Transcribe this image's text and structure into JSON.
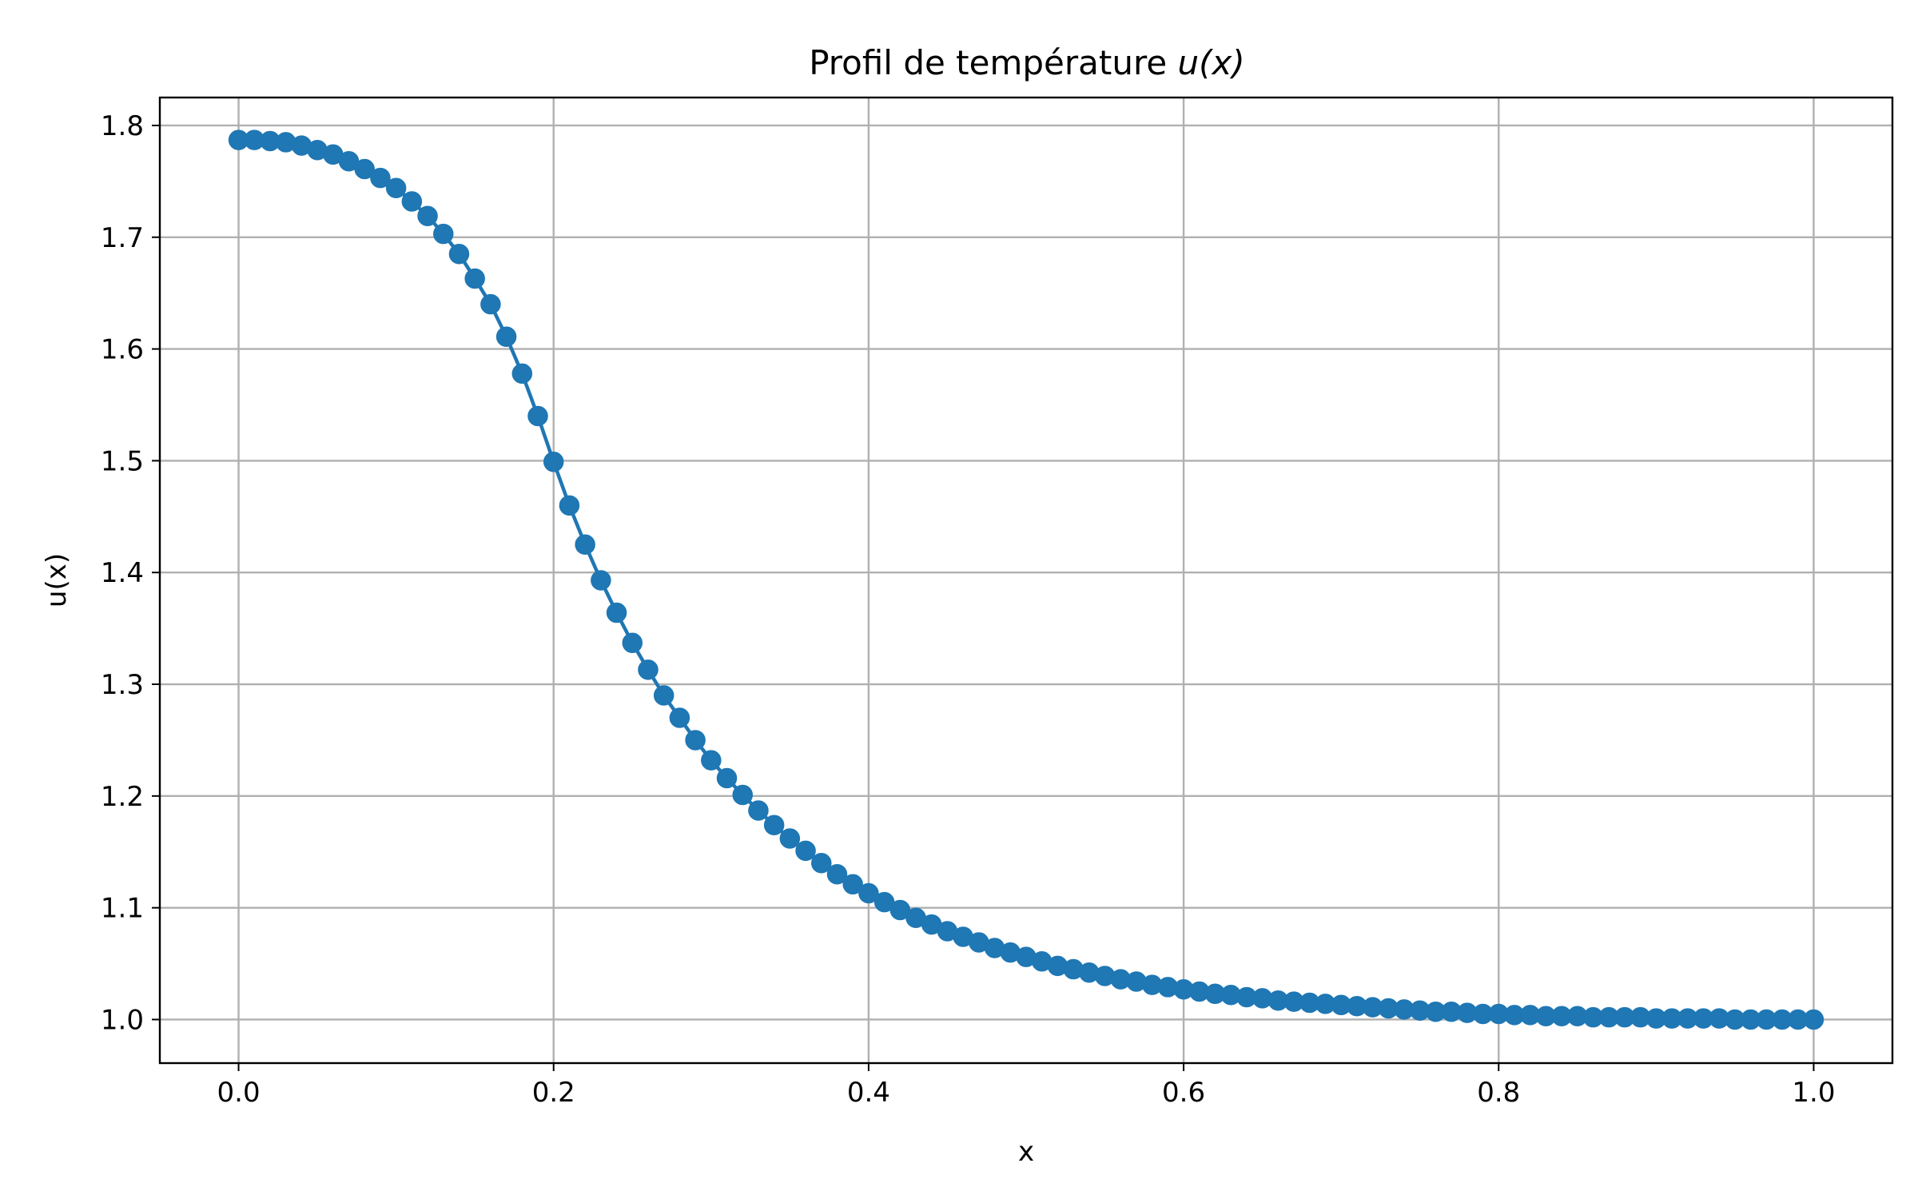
{
  "chart_data": {
    "type": "line",
    "title_prefix": "Profil de température ",
    "title_math": "u(x)",
    "xlabel": "x",
    "ylabel": "u(x)",
    "xlim": [
      -0.05,
      1.05
    ],
    "ylim": [
      0.961,
      1.825
    ],
    "xticks": [
      0.0,
      0.2,
      0.4,
      0.6,
      0.8,
      1.0
    ],
    "xtick_labels": [
      "0.0",
      "0.2",
      "0.4",
      "0.6",
      "0.8",
      "1.0"
    ],
    "yticks": [
      1.0,
      1.1,
      1.2,
      1.3,
      1.4,
      1.5,
      1.6,
      1.7,
      1.8
    ],
    "ytick_labels": [
      "1.0",
      "1.1",
      "1.2",
      "1.3",
      "1.4",
      "1.5",
      "1.6",
      "1.7",
      "1.8"
    ],
    "grid": true,
    "series": [
      {
        "color": "#1f77b4",
        "marker": "circle",
        "x": [
          0.0,
          0.01,
          0.02,
          0.03,
          0.04,
          0.05,
          0.06,
          0.07,
          0.08,
          0.09,
          0.1,
          0.11,
          0.12,
          0.13,
          0.14,
          0.15,
          0.16,
          0.17,
          0.18,
          0.19,
          0.2,
          0.21,
          0.22,
          0.23,
          0.24,
          0.25,
          0.26,
          0.27,
          0.28,
          0.29,
          0.3,
          0.31,
          0.32,
          0.33,
          0.34,
          0.35,
          0.36,
          0.37,
          0.38,
          0.39,
          0.4,
          0.41,
          0.42,
          0.43,
          0.44,
          0.45,
          0.46,
          0.47,
          0.48,
          0.49,
          0.5,
          0.51,
          0.52,
          0.53,
          0.54,
          0.55,
          0.56,
          0.57,
          0.58,
          0.59,
          0.6,
          0.61,
          0.62,
          0.63,
          0.64,
          0.65,
          0.66,
          0.67,
          0.68,
          0.69,
          0.7,
          0.71,
          0.72,
          0.73,
          0.74,
          0.75,
          0.76,
          0.77,
          0.78,
          0.79,
          0.8,
          0.81,
          0.82,
          0.83,
          0.84,
          0.85,
          0.86,
          0.87,
          0.88,
          0.89,
          0.9,
          0.91,
          0.92,
          0.93,
          0.94,
          0.95,
          0.96,
          0.97,
          0.98,
          0.99,
          1.0
        ],
        "y": [
          1.787,
          1.787,
          1.786,
          1.785,
          1.782,
          1.778,
          1.774,
          1.768,
          1.761,
          1.753,
          1.744,
          1.732,
          1.719,
          1.703,
          1.685,
          1.663,
          1.64,
          1.611,
          1.578,
          1.54,
          1.499,
          1.46,
          1.425,
          1.393,
          1.364,
          1.337,
          1.313,
          1.29,
          1.27,
          1.25,
          1.232,
          1.216,
          1.201,
          1.187,
          1.174,
          1.162,
          1.151,
          1.14,
          1.13,
          1.121,
          1.113,
          1.105,
          1.098,
          1.091,
          1.085,
          1.079,
          1.074,
          1.069,
          1.064,
          1.06,
          1.056,
          1.052,
          1.048,
          1.045,
          1.042,
          1.039,
          1.036,
          1.034,
          1.031,
          1.029,
          1.027,
          1.025,
          1.023,
          1.022,
          1.02,
          1.019,
          1.017,
          1.016,
          1.015,
          1.014,
          1.013,
          1.012,
          1.011,
          1.01,
          1.009,
          1.008,
          1.007,
          1.007,
          1.006,
          1.005,
          1.005,
          1.004,
          1.004,
          1.003,
          1.003,
          1.003,
          1.002,
          1.002,
          1.002,
          1.002,
          1.001,
          1.001,
          1.001,
          1.001,
          1.001,
          1.0,
          1.0,
          1.0,
          1.0,
          1.0,
          1.0
        ]
      }
    ]
  }
}
